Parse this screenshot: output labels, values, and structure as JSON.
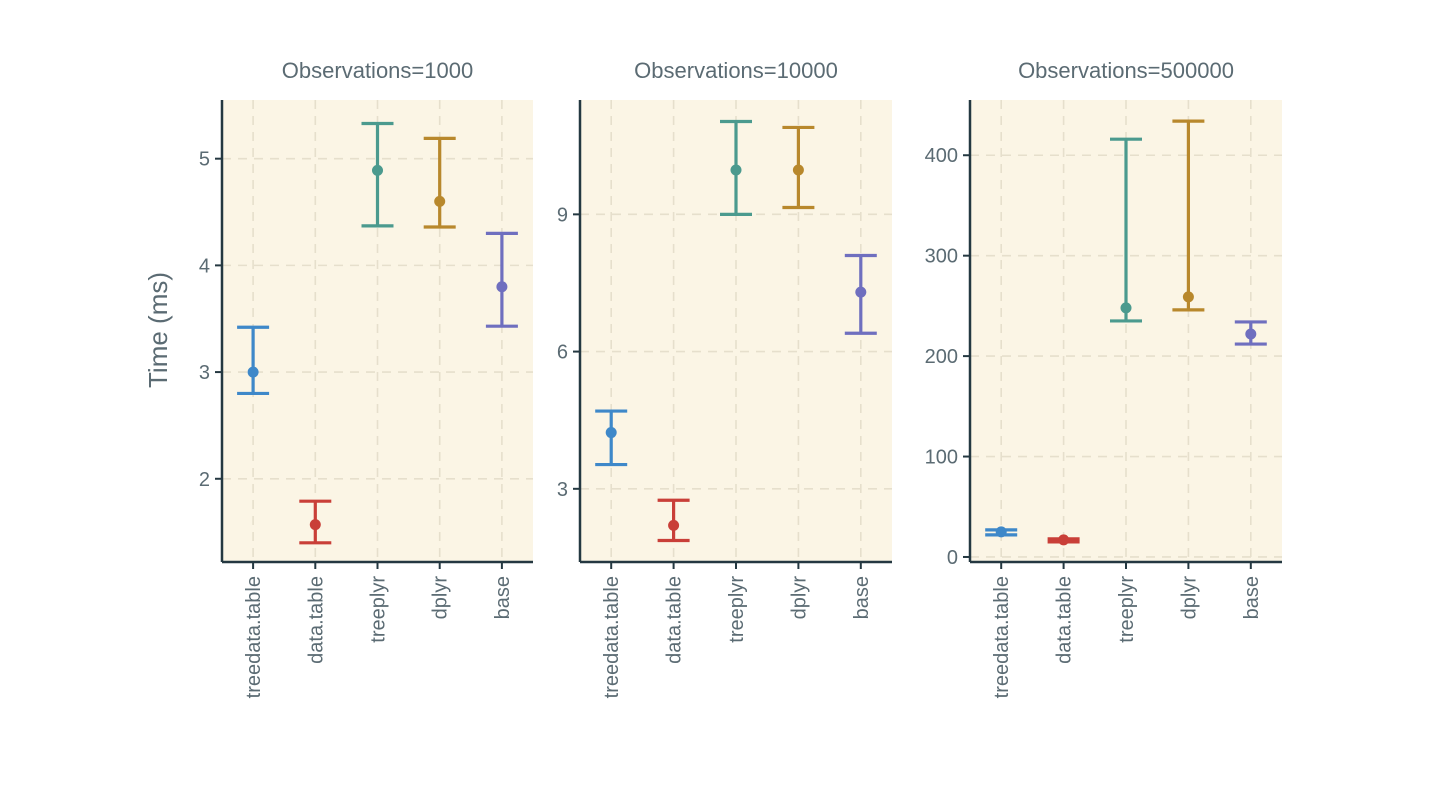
{
  "chart_data": [
    {
      "type": "errorbar",
      "title": "Observations=1000",
      "ylabel": "Time (ms)",
      "xlabel": "",
      "categories": [
        "treedata.table",
        "data.table",
        "treeplyr",
        "dplyr",
        "base"
      ],
      "ylim": [
        1.22,
        5.55
      ],
      "yticks": [
        2,
        3,
        4,
        5
      ],
      "points": [
        {
          "category": "treedata.table",
          "y": 3.0,
          "ymin": 2.8,
          "ymax": 3.42
        },
        {
          "category": "data.table",
          "y": 1.57,
          "ymin": 1.4,
          "ymax": 1.79
        },
        {
          "category": "treeplyr",
          "y": 4.89,
          "ymin": 4.37,
          "ymax": 5.33
        },
        {
          "category": "dplyr",
          "y": 4.6,
          "ymin": 4.36,
          "ymax": 5.19
        },
        {
          "category": "base",
          "y": 3.8,
          "ymin": 3.43,
          "ymax": 4.3
        }
      ],
      "grid": true
    },
    {
      "type": "errorbar",
      "title": "Observations=10000",
      "ylabel": "",
      "xlabel": "",
      "categories": [
        "treedata.table",
        "data.table",
        "treeplyr",
        "dplyr",
        "base"
      ],
      "ylim": [
        1.4,
        11.5
      ],
      "yticks": [
        3,
        6,
        9
      ],
      "points": [
        {
          "category": "treedata.table",
          "y": 4.23,
          "ymin": 3.53,
          "ymax": 4.7
        },
        {
          "category": "data.table",
          "y": 2.2,
          "ymin": 1.87,
          "ymax": 2.75
        },
        {
          "category": "treeplyr",
          "y": 9.97,
          "ymin": 9.0,
          "ymax": 11.03
        },
        {
          "category": "dplyr",
          "y": 9.97,
          "ymin": 9.15,
          "ymax": 10.9
        },
        {
          "category": "base",
          "y": 7.3,
          "ymin": 6.4,
          "ymax": 8.1
        }
      ],
      "grid": true
    },
    {
      "type": "errorbar",
      "title": "Observations=500000",
      "ylabel": "",
      "xlabel": "",
      "categories": [
        "treedata.table",
        "data.table",
        "treeplyr",
        "dplyr",
        "base"
      ],
      "ylim": [
        -5,
        455
      ],
      "yticks": [
        0,
        100,
        200,
        300,
        400
      ],
      "points": [
        {
          "category": "treedata.table",
          "y": 25,
          "ymin": 22,
          "ymax": 27
        },
        {
          "category": "data.table",
          "y": 17,
          "ymin": 15,
          "ymax": 18
        },
        {
          "category": "treeplyr",
          "y": 248,
          "ymin": 235,
          "ymax": 416
        },
        {
          "category": "dplyr",
          "y": 259,
          "ymin": 246,
          "ymax": 434
        },
        {
          "category": "base",
          "y": 222,
          "ymin": 212,
          "ymax": 234
        }
      ],
      "grid": true
    }
  ],
  "colors": {
    "panel_background": "#fbf5e5",
    "grid": "#e6dfcc",
    "axis": "#243841",
    "text": "#5b6b73",
    "series": {
      "treedata.table": "#3e88c9",
      "data.table": "#c93f38",
      "treeplyr": "#4b9a8e",
      "dplyr": "#b8882c",
      "base": "#6f6fbf"
    }
  }
}
